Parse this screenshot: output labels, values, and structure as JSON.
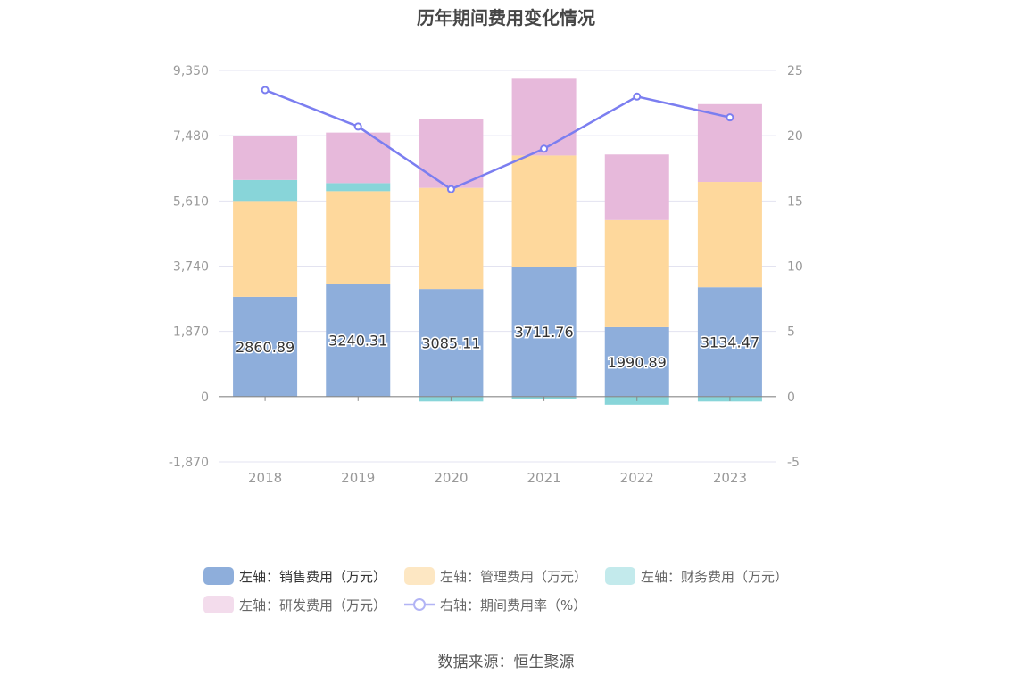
{
  "chart_data": {
    "type": "bar",
    "title": "历年期间费用变化情况",
    "categories": [
      "2018",
      "2019",
      "2020",
      "2021",
      "2022",
      "2023"
    ],
    "left_axis": {
      "ylim": [
        -1870,
        9350
      ],
      "ticks": [
        -1870,
        0,
        1870,
        3740,
        5610,
        7480,
        9350
      ],
      "tick_labels": [
        "-1,870",
        "0",
        "1,870",
        "3,740",
        "5,610",
        "7,480",
        "9,350"
      ]
    },
    "right_axis": {
      "ylim": [
        -5,
        25
      ],
      "ticks": [
        -5,
        0,
        5,
        10,
        15,
        20,
        25
      ],
      "tick_labels": [
        "-5",
        "0",
        "5",
        "10",
        "15",
        "20",
        "25"
      ]
    },
    "series": [
      {
        "name": "左轴：销售费用（万元）",
        "axis": "left",
        "kind": "bar",
        "color": "#8eaedb",
        "values": [
          2860.89,
          3240.31,
          3085.11,
          3711.76,
          1990.89,
          3134.47
        ],
        "labels": [
          "2860.89",
          "3240.31",
          "3085.11",
          "3711.76",
          "1990.89",
          "3134.47"
        ]
      },
      {
        "name": "左轴：管理费用（万元）",
        "axis": "left",
        "kind": "bar",
        "color": "#fed89c",
        "values": [
          2750,
          2650,
          2900,
          3200,
          3070,
          3020
        ]
      },
      {
        "name": "左轴：财务费用（万元）",
        "axis": "left",
        "kind": "bar",
        "color": "#88d5d9",
        "values": [
          600,
          230,
          -140,
          -80,
          -230,
          -140
        ]
      },
      {
        "name": "左轴：研发费用（万元）",
        "axis": "left",
        "kind": "bar",
        "color": "#e7b9db",
        "values": [
          1270,
          1450,
          1960,
          2200,
          1880,
          2230
        ]
      },
      {
        "name": "右轴：期间费用率（%）",
        "axis": "right",
        "kind": "line",
        "color": "#7b7ef0",
        "values": [
          23.5,
          20.7,
          15.9,
          19.0,
          23.0,
          21.4
        ]
      }
    ],
    "legend": [
      {
        "label": "左轴：销售费用（万元）",
        "color": "#8eaedb",
        "kind": "bar"
      },
      {
        "label": "左轴：管理费用（万元）",
        "color": "#fde7c3",
        "kind": "bar"
      },
      {
        "label": "左轴：财务费用（万元）",
        "color": "#c3eaec",
        "kind": "bar"
      },
      {
        "label": "左轴：研发费用（万元）",
        "color": "#f3dcec",
        "kind": "bar"
      },
      {
        "label": "右轴：期间费用率（%）",
        "color": "#b2b4f5",
        "kind": "line"
      }
    ],
    "source": "数据来源：恒生聚源"
  }
}
